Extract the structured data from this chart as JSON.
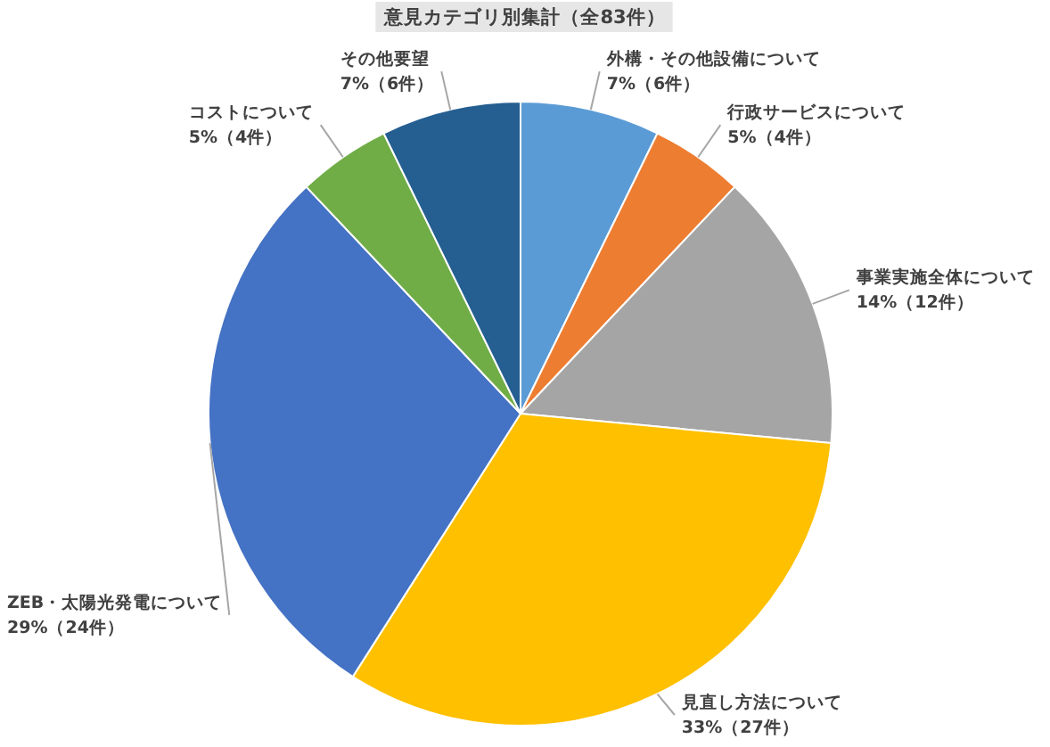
{
  "chart_data": {
    "type": "pie",
    "title": "意見カテゴリ別集計（全83件）",
    "categories": [
      "外構・その他設備について",
      "行政サービスについて",
      "事業実施全体について",
      "見直し方法について",
      "ZEB・太陽光発電について",
      "コストについて",
      "その他要望"
    ],
    "values": [
      6,
      4,
      12,
      27,
      24,
      4,
      6
    ],
    "value_labels": [
      "7%（6件）",
      "5%（4件）",
      "14%（12件）",
      "33%（27件）",
      "29%（24件）",
      "5%（4件）",
      "7%（6件）"
    ],
    "colors": [
      "#5b9bd5",
      "#ed7d31",
      "#a5a5a5",
      "#ffc000",
      "#4472c4",
      "#70ad47",
      "#255e91"
    ]
  }
}
